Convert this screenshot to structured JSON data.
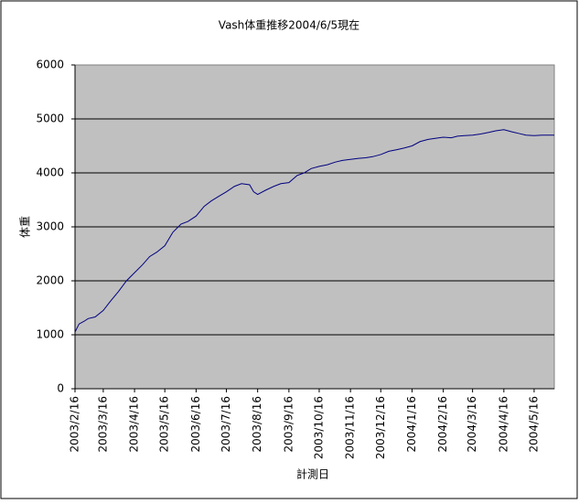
{
  "chart_data": {
    "type": "line",
    "title": "Vash体重推移2004/6/5現在",
    "x_label": "計測日",
    "y_label": "体重",
    "x": [
      "2003/2/16",
      "2003/2/20",
      "2003/2/25",
      "2003/3/1",
      "2003/3/8",
      "2003/3/16",
      "2003/3/23",
      "2003/3/31",
      "2003/4/8",
      "2003/4/16",
      "2003/4/24",
      "2003/5/1",
      "2003/5/8",
      "2003/5/16",
      "2003/5/24",
      "2003/6/1",
      "2003/6/8",
      "2003/6/16",
      "2003/6/24",
      "2003/7/1",
      "2003/7/8",
      "2003/7/16",
      "2003/7/24",
      "2003/7/31",
      "2003/8/8",
      "2003/8/12",
      "2003/8/16",
      "2003/8/24",
      "2003/9/1",
      "2003/9/8",
      "2003/9/16",
      "2003/9/24",
      "2003/10/1",
      "2003/10/8",
      "2003/10/16",
      "2003/10/24",
      "2003/11/1",
      "2003/11/8",
      "2003/11/16",
      "2003/11/24",
      "2003/12/1",
      "2003/12/8",
      "2003/12/16",
      "2003/12/24",
      "2004/1/1",
      "2004/1/8",
      "2004/1/16",
      "2004/1/24",
      "2004/2/1",
      "2004/2/8",
      "2004/2/16",
      "2004/2/24",
      "2004/3/1",
      "2004/3/8",
      "2004/3/16",
      "2004/3/24",
      "2004/4/1",
      "2004/4/8",
      "2004/4/16",
      "2004/4/24",
      "2004/5/1",
      "2004/5/8",
      "2004/5/16",
      "2004/5/24",
      "2004/6/1",
      "2004/6/5"
    ],
    "values": [
      1050,
      1200,
      1250,
      1300,
      1330,
      1450,
      1620,
      1800,
      2000,
      2150,
      2300,
      2450,
      2530,
      2650,
      2900,
      3050,
      3100,
      3200,
      3380,
      3480,
      3560,
      3650,
      3750,
      3800,
      3780,
      3650,
      3600,
      3680,
      3750,
      3800,
      3820,
      3950,
      4000,
      4080,
      4120,
      4150,
      4200,
      4230,
      4250,
      4270,
      4280,
      4300,
      4340,
      4400,
      4430,
      4460,
      4500,
      4580,
      4620,
      4640,
      4660,
      4650,
      4680,
      4690,
      4700,
      4720,
      4750,
      4780,
      4800,
      4760,
      4730,
      4700,
      4690,
      4700,
      4700,
      4700
    ],
    "color": "#000080",
    "xlim": [
      "2003/2/16",
      "2004/6/5"
    ],
    "xticks": [
      "2003/2/16",
      "2003/3/16",
      "2003/4/16",
      "2003/5/16",
      "2003/6/16",
      "2003/7/16",
      "2003/8/16",
      "2003/9/16",
      "2003/10/16",
      "2003/11/16",
      "2003/12/16",
      "2004/1/16",
      "2004/2/16",
      "2004/3/16",
      "2004/4/16",
      "2004/5/16"
    ],
    "ylim": [
      0,
      6000
    ],
    "yticks": [
      0,
      1000,
      2000,
      3000,
      4000,
      5000,
      6000
    ],
    "grid": true
  }
}
